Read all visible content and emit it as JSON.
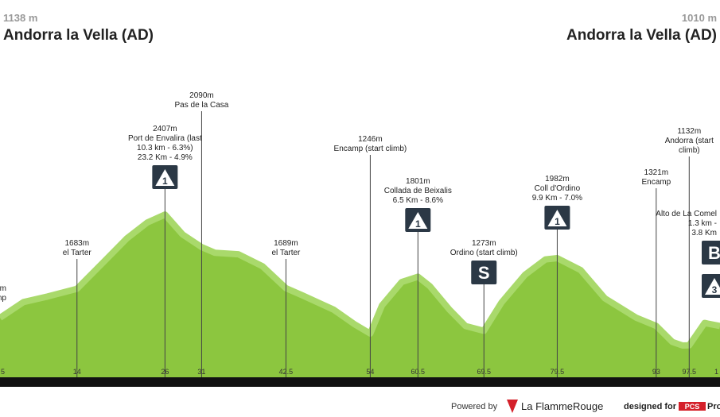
{
  "header": {
    "start_elevation": "1138 m",
    "start_name": "Andorra la Vella (AD)",
    "end_elevation": "1010 m",
    "end_name": "Andorra la Vella (AD)"
  },
  "chart_data": {
    "type": "area",
    "color": "#8cc63f",
    "x": [
      3.5,
      6.7,
      10,
      14,
      17.6,
      20.8,
      23.6,
      26,
      28.4,
      31,
      32.8,
      36,
      39.3,
      42.5,
      44.7,
      49,
      51.8,
      54,
      55.6,
      58.3,
      60.5,
      62.1,
      64.8,
      67,
      69.5,
      71.9,
      75.1,
      77.9,
      79.5,
      82.7,
      86,
      90.3,
      93,
      95.2,
      96.6,
      97.5,
      99.6,
      101.7
    ],
    "values": [
      1400,
      1554,
      1608,
      1683,
      1942,
      2174,
      2330,
      2407,
      2213,
      2090,
      2035,
      2020,
      1903,
      1689,
      1620,
      1480,
      1340,
      1246,
      1520,
      1750,
      1801,
      1710,
      1480,
      1320,
      1273,
      1550,
      1820,
      1970,
      1982,
      1865,
      1590,
      1400,
      1321,
      1165,
      1130,
      1132,
      1350,
      1320
    ],
    "xlim": [
      3.5,
      101.7
    ],
    "ylim": [
      820,
      4500
    ],
    "xticks": [
      5,
      14,
      26,
      31,
      42.5,
      54,
      60.5,
      69.5,
      79.5,
      93,
      97.5,
      {
        "value": 101.5,
        "label": "1"
      }
    ],
    "waypoints": [
      {
        "lines": [
          "m",
          "mp"
        ]
      },
      {
        "lines": [
          "1683m",
          "el Tarter"
        ]
      },
      {
        "lines": [
          "2407m",
          "Port de Envalira (last",
          "10.3 km - 6.3%)",
          "23.2 Km - 4.9%"
        ],
        "icons": [
          "1"
        ]
      },
      {
        "lines": [
          "2090m",
          "Pas de la Casa"
        ]
      },
      {
        "lines": [
          "1689m",
          "el Tarter"
        ]
      },
      {
        "lines": [
          "1246m",
          "Encamp (start climb)"
        ]
      },
      {
        "lines": [
          "1801m",
          "Collada de Beixalis",
          "6.5 Km - 8.6%"
        ],
        "icons": [
          "1"
        ]
      },
      {
        "lines": [
          "1273m",
          "Ordino (start climb)"
        ],
        "icons": [
          "S"
        ]
      },
      {
        "lines": [
          "1982m",
          "Coll d'Ordino",
          "9.9 Km - 7.0%"
        ],
        "icons": [
          "1"
        ]
      },
      {
        "lines": [
          "1321m",
          "Encamp"
        ]
      },
      {
        "lines": [
          "1132m",
          "Andorra (start",
          "climb)"
        ]
      },
      {
        "lines": [
          "Alto de La Comel",
          "1.3 km -",
          "3.8 Km"
        ],
        "icons": [
          "B",
          "3"
        ]
      }
    ]
  },
  "footer": {
    "powered": "Powered by",
    "brand": "La FlammeRouge",
    "designed": "designed for",
    "pcs": "PCS",
    "pro": "Pro"
  }
}
